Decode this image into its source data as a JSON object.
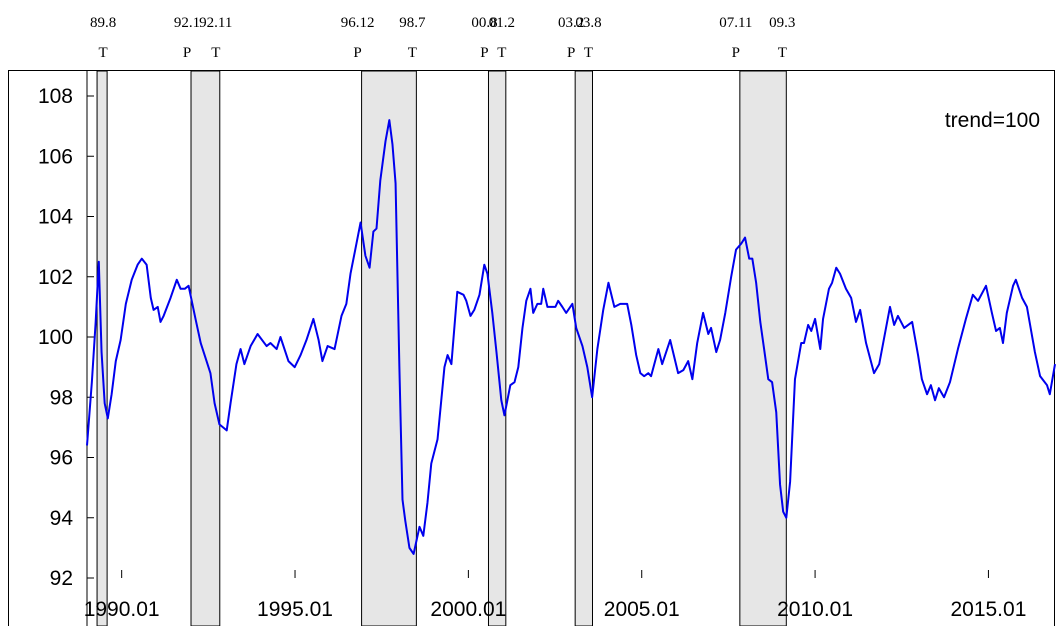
{
  "chart_data": {
    "type": "line",
    "annotation": "trend=100",
    "x": [
      1989.0,
      1989.14,
      1989.25,
      1989.34,
      1989.42,
      1989.51,
      1989.6,
      1989.71,
      1989.83,
      1989.97,
      1990.12,
      1990.29,
      1990.46,
      1990.58,
      1990.72,
      1990.84,
      1990.92,
      1991.04,
      1991.12,
      1991.21,
      1991.41,
      1991.59,
      1991.7,
      1991.82,
      1991.93,
      1992.13,
      1992.28,
      1992.42,
      1992.56,
      1992.68,
      1992.82,
      1993.03,
      1993.14,
      1993.31,
      1993.43,
      1993.54,
      1993.72,
      1993.92,
      1994.18,
      1994.29,
      1994.47,
      1994.58,
      1994.81,
      1994.99,
      1995.16,
      1995.33,
      1995.53,
      1995.68,
      1995.79,
      1995.94,
      1996.14,
      1996.34,
      1996.48,
      1996.6,
      1996.72,
      1996.89,
      1997.03,
      1997.15,
      1997.26,
      1997.35,
      1997.46,
      1997.61,
      1997.72,
      1997.81,
      1997.9,
      1998.01,
      1998.1,
      1998.18,
      1998.3,
      1998.42,
      1998.59,
      1998.7,
      1998.82,
      1998.93,
      1999.11,
      1999.31,
      1999.4,
      1999.51,
      1999.68,
      1999.86,
      1999.94,
      2000.06,
      2000.17,
      2000.32,
      2000.46,
      2000.55,
      2000.69,
      2000.81,
      2000.95,
      2001.04,
      2001.21,
      2001.33,
      2001.44,
      2001.56,
      2001.67,
      2001.79,
      2001.87,
      2001.99,
      2002.1,
      2002.16,
      2002.28,
      2002.51,
      2002.59,
      2002.71,
      2002.82,
      2003.0,
      2003.11,
      2003.29,
      2003.43,
      2003.57,
      2003.72,
      2003.89,
      2004.04,
      2004.21,
      2004.38,
      2004.58,
      2004.7,
      2004.84,
      2004.96,
      2005.07,
      2005.19,
      2005.27,
      2005.48,
      2005.59,
      2005.82,
      2006.05,
      2006.2,
      2006.34,
      2006.46,
      2006.6,
      2006.77,
      2006.92,
      2007.0,
      2007.15,
      2007.26,
      2007.41,
      2007.58,
      2007.72,
      2007.87,
      2007.98,
      2008.1,
      2008.19,
      2008.3,
      2008.42,
      2008.53,
      2008.65,
      2008.76,
      2008.88,
      2008.99,
      2009.08,
      2009.17,
      2009.28,
      2009.42,
      2009.6,
      2009.68,
      2009.8,
      2009.89,
      2010.0,
      2010.15,
      2010.23,
      2010.4,
      2010.49,
      2010.61,
      2010.72,
      2010.89,
      2011.04,
      2011.18,
      2011.3,
      2011.47,
      2011.7,
      2011.85,
      2012.16,
      2012.28,
      2012.39,
      2012.57,
      2012.8,
      2012.97,
      2013.08,
      2013.23,
      2013.34,
      2013.46,
      2013.57,
      2013.72,
      2013.89,
      2014.12,
      2014.35,
      2014.55,
      2014.7,
      2014.93,
      2015.1,
      2015.22,
      2015.33,
      2015.42,
      2015.53,
      2015.71,
      2015.79,
      2015.97,
      2016.11,
      2016.34,
      2016.49,
      2016.69,
      2016.77,
      2016.92
    ],
    "series": [
      {
        "color": "#0000ee",
        "values": [
          96.4,
          98.5,
          100.5,
          102.5,
          99.5,
          97.8,
          97.3,
          98.1,
          99.2,
          99.9,
          101.1,
          101.9,
          102.4,
          102.6,
          102.4,
          101.3,
          100.9,
          101,
          100.5,
          100.7,
          101.3,
          101.9,
          101.6,
          101.6,
          101.7,
          100.6,
          99.8,
          99.3,
          98.8,
          97.8,
          97.1,
          96.9,
          97.8,
          99.1,
          99.6,
          99.1,
          99.7,
          100.1,
          99.7,
          99.8,
          99.6,
          100,
          99.2,
          99,
          99.4,
          99.9,
          100.6,
          99.9,
          99.2,
          99.7,
          99.6,
          100.7,
          101.1,
          102.1,
          102.8,
          103.8,
          102.7,
          102.3,
          103.5,
          103.6,
          105.2,
          106.5,
          107.2,
          106.4,
          105.1,
          99,
          94.6,
          93.9,
          93,
          92.8,
          93.7,
          93.4,
          94.5,
          95.8,
          96.6,
          99,
          99.4,
          99.1,
          101.5,
          101.4,
          101.2,
          100.7,
          100.9,
          101.4,
          102.4,
          102.1,
          100.8,
          99.5,
          97.9,
          97.4,
          98.4,
          98.5,
          99,
          100.3,
          101.2,
          101.6,
          100.8,
          101.1,
          101.1,
          101.6,
          101,
          101,
          101.2,
          101,
          100.8,
          101.1,
          100.3,
          99.7,
          99,
          98,
          99.6,
          100.9,
          101.8,
          101,
          101.1,
          101.1,
          100.4,
          99.4,
          98.8,
          98.7,
          98.8,
          98.7,
          99.6,
          99.1,
          99.9,
          98.8,
          98.9,
          99.2,
          98.6,
          99.8,
          100.8,
          100.1,
          100.3,
          99.5,
          99.9,
          100.8,
          102,
          102.9,
          103.1,
          103.3,
          102.6,
          102.6,
          101.8,
          100.5,
          99.6,
          98.6,
          98.5,
          97.5,
          95.1,
          94.2,
          94,
          95.2,
          98.6,
          99.8,
          99.8,
          100.4,
          100.2,
          100.6,
          99.6,
          100.6,
          101.6,
          101.8,
          102.3,
          102.1,
          101.6,
          101.3,
          100.5,
          100.9,
          99.8,
          98.8,
          99.1,
          101,
          100.4,
          100.7,
          100.3,
          100.5,
          99.4,
          98.6,
          98.1,
          98.4,
          97.9,
          98.3,
          98,
          98.5,
          99.6,
          100.6,
          101.4,
          101.2,
          101.7,
          100.8,
          100.2,
          100.3,
          99.8,
          100.8,
          101.7,
          101.9,
          101.3,
          101,
          99.5,
          98.7,
          98.4,
          98.1,
          99.1
        ]
      }
    ],
    "xlim": [
      1989.0,
      2016.92
    ],
    "xticks": [
      {
        "value": 1990,
        "label": "1990.01"
      },
      {
        "value": 1995,
        "label": "1995.01"
      },
      {
        "value": 2000,
        "label": "2000.01"
      },
      {
        "value": 2005,
        "label": "2005.01"
      },
      {
        "value": 2010,
        "label": "2010.01"
      },
      {
        "value": 2015,
        "label": "2015.01"
      }
    ],
    "ylim": [
      92,
      108
    ],
    "yticks": [
      92,
      94,
      96,
      98,
      100,
      102,
      104,
      106,
      108
    ],
    "band_color": "#e6e6e6",
    "shading": [
      [
        1989.29,
        1989.58
      ],
      [
        1992.0,
        1992.83
      ],
      [
        1996.92,
        1998.5
      ],
      [
        2000.58,
        2001.08
      ],
      [
        2003.08,
        2003.58
      ],
      [
        2007.83,
        2009.17
      ]
    ],
    "turning_points": [
      {
        "x": 1989.58,
        "date": "89.8",
        "phase": "T"
      },
      {
        "x": 1992.0,
        "date": "92.1",
        "phase": "P"
      },
      {
        "x": 1992.83,
        "date": "92.11",
        "phase": "T"
      },
      {
        "x": 1996.92,
        "date": "96.12",
        "phase": "P"
      },
      {
        "x": 1998.5,
        "date": "98.7",
        "phase": "T"
      },
      {
        "x": 2000.58,
        "date": "00.8",
        "phase": "P"
      },
      {
        "x": 2001.08,
        "date": "01.2",
        "phase": "T"
      },
      {
        "x": 2003.08,
        "date": "03.2",
        "phase": "P"
      },
      {
        "x": 2003.58,
        "date": "03.8",
        "phase": "T"
      },
      {
        "x": 2007.83,
        "date": "07.11",
        "phase": "P"
      },
      {
        "x": 2009.17,
        "date": "09.3",
        "phase": "T"
      }
    ]
  }
}
